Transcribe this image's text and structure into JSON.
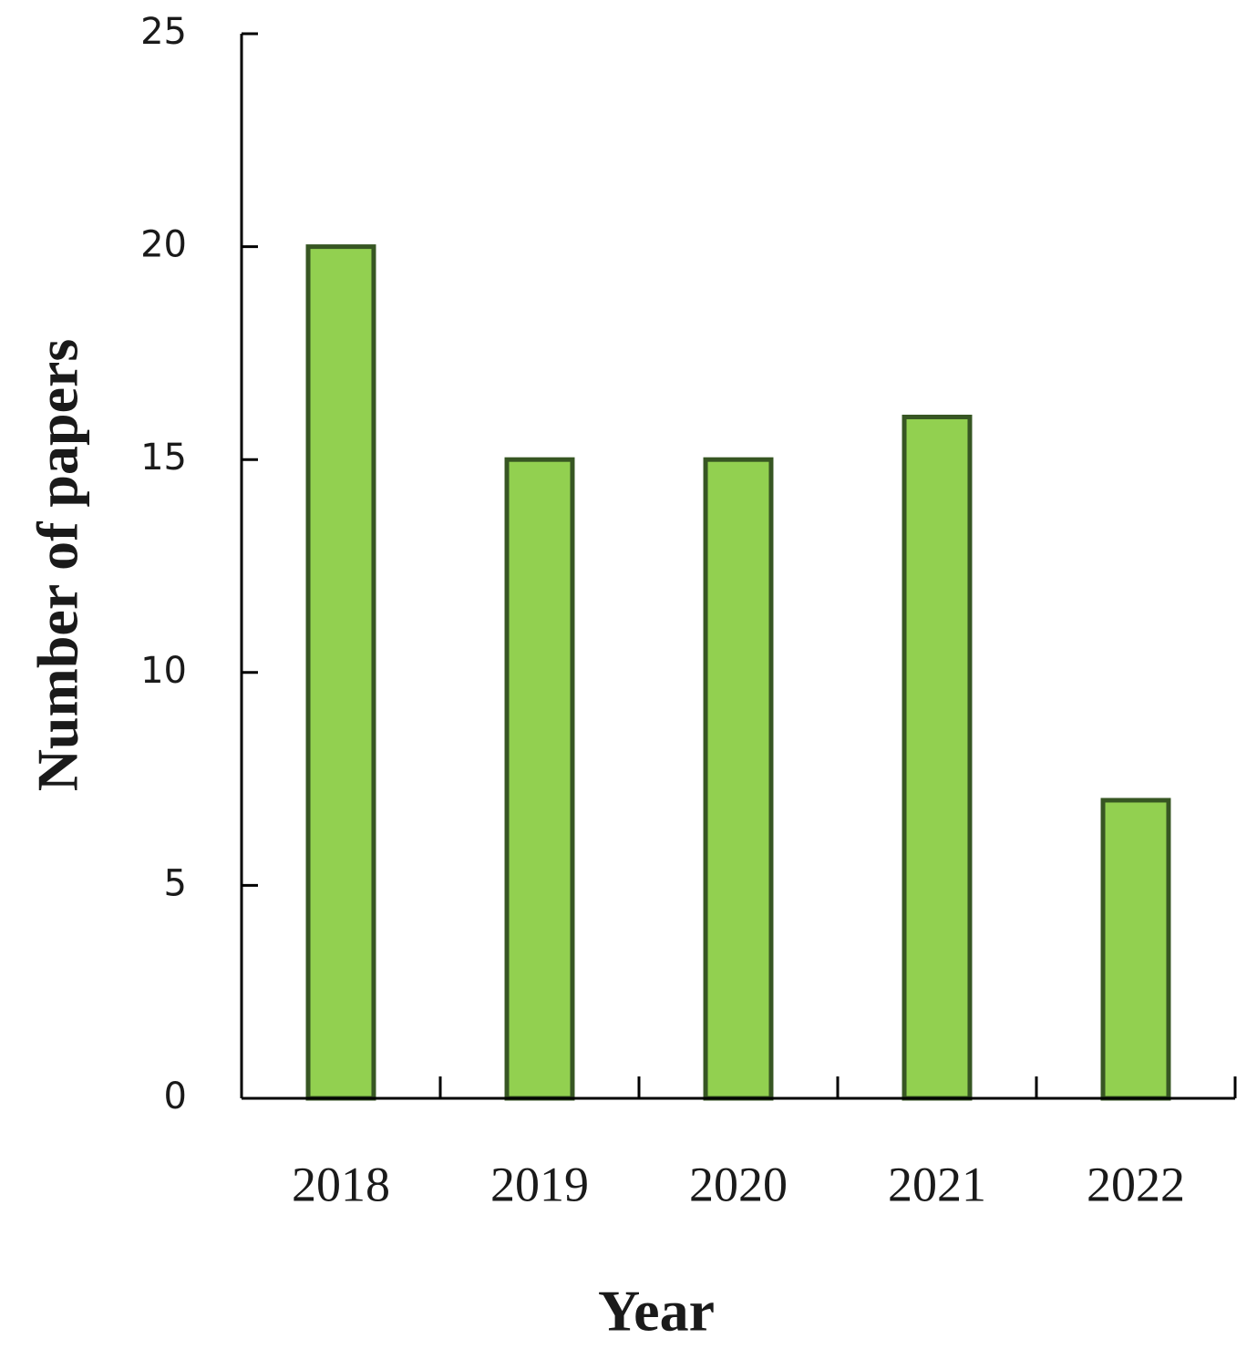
{
  "chart_data": {
    "type": "bar",
    "x_label": "Year",
    "y_label": "Number of papers",
    "categories": [
      "2018",
      "2019",
      "2020",
      "2021",
      "2022"
    ],
    "values": [
      20,
      15,
      15,
      16,
      7
    ],
    "color": "#92d050",
    "edge_color": "#375623",
    "ylim": [
      0,
      25
    ],
    "yticks": [
      0,
      5,
      10,
      15,
      20,
      25
    ],
    "grid": false
  }
}
